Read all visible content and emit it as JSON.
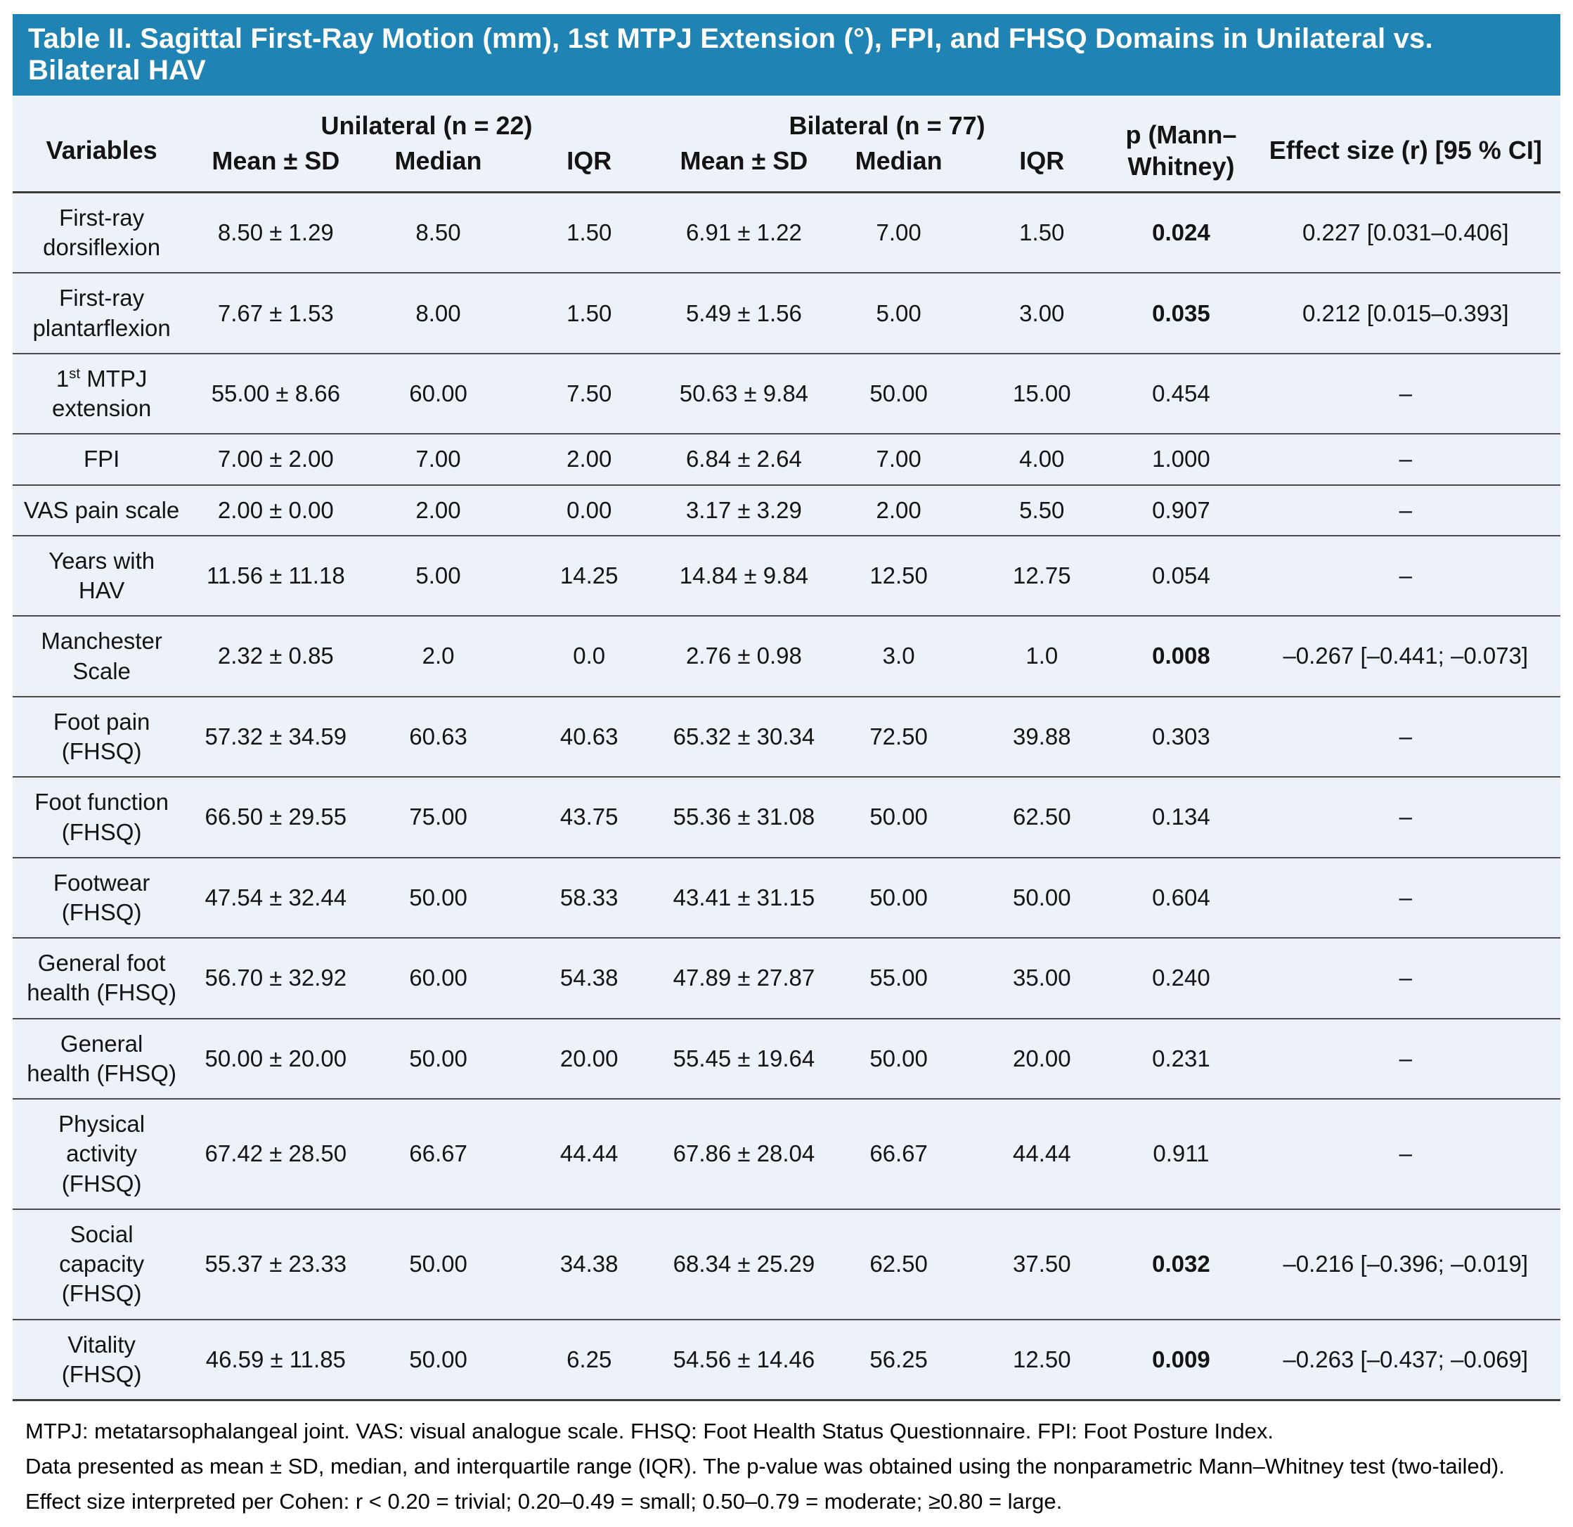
{
  "colors": {
    "title_bar": "#1F84B4",
    "table_body_background": "#EDF1F8",
    "row_rule": "#4A4A4A"
  },
  "table": {
    "title": "Table II. Sagittal First-Ray Motion (mm), 1st MTPJ Extension (°), FPI, and FHSQ Domains in Unilateral vs. Bilateral HAV",
    "header": {
      "variables_label": "Variables",
      "groups": [
        {
          "label": "Unilateral (n = 22)",
          "sub": [
            "Mean ± SD",
            "Median",
            "IQR"
          ]
        },
        {
          "label": "Bilateral (n = 77)",
          "sub": [
            "Mean ± SD",
            "Median",
            "IQR"
          ]
        }
      ],
      "p_label": "p (Mann–\nWhitney)",
      "effect_label": "Effect size (r) [95 % CI]"
    },
    "rows": [
      {
        "variable": "First-ray\ndorsiflexion",
        "uni": [
          "8.50 ± 1.29",
          "8.50",
          "1.50"
        ],
        "bil": [
          "6.91 ± 1.22",
          "7.00",
          "1.50"
        ],
        "p": "0.024",
        "p_bold": true,
        "effect": "0.227 [0.031–0.406]"
      },
      {
        "variable": "First-ray\nplantarflexion",
        "uni": [
          "7.67 ± 1.53",
          "8.00",
          "1.50"
        ],
        "bil": [
          "5.49 ± 1.56",
          "5.00",
          "3.00"
        ],
        "p": "0.035",
        "p_bold": true,
        "effect": "0.212 [0.015–0.393]"
      },
      {
        "variable_segments": [
          {
            "t": "1"
          },
          {
            "t": "st",
            "sup": true
          },
          {
            "t": " MTPJ\nextension"
          }
        ],
        "uni": [
          "55.00 ± 8.66",
          "60.00",
          "7.50"
        ],
        "bil": [
          "50.63 ± 9.84",
          "50.00",
          "15.00"
        ],
        "p": "0.454",
        "p_bold": false,
        "effect": "–"
      },
      {
        "variable": "FPI",
        "uni": [
          "7.00 ± 2.00",
          "7.00",
          "2.00"
        ],
        "bil": [
          "6.84 ± 2.64",
          "7.00",
          "4.00"
        ],
        "p": "1.000",
        "p_bold": false,
        "effect": "–"
      },
      {
        "variable": "VAS pain scale",
        "uni": [
          "2.00 ± 0.00",
          "2.00",
          "0.00"
        ],
        "bil": [
          "3.17 ± 3.29",
          "2.00",
          "5.50"
        ],
        "p": "0.907",
        "p_bold": false,
        "effect": "–"
      },
      {
        "variable": "Years with\nHAV",
        "uni": [
          "11.56 ± 11.18",
          "5.00",
          "14.25"
        ],
        "bil": [
          "14.84 ± 9.84",
          "12.50",
          "12.75"
        ],
        "p": "0.054",
        "p_bold": false,
        "effect": "–"
      },
      {
        "variable": "Manchester\nScale",
        "uni": [
          "2.32 ± 0.85",
          "2.0",
          "0.0"
        ],
        "bil": [
          "2.76 ± 0.98",
          "3.0",
          "1.0"
        ],
        "p": "0.008",
        "p_bold": true,
        "effect": "–0.267 [–0.441; –0.073]"
      },
      {
        "variable": "Foot pain\n(FHSQ)",
        "uni": [
          "57.32 ± 34.59",
          "60.63",
          "40.63"
        ],
        "bil": [
          "65.32 ± 30.34",
          "72.50",
          "39.88"
        ],
        "p": "0.303",
        "p_bold": false,
        "effect": "–"
      },
      {
        "variable": "Foot function\n(FHSQ)",
        "uni": [
          "66.50 ± 29.55",
          "75.00",
          "43.75"
        ],
        "bil": [
          "55.36 ± 31.08",
          "50.00",
          "62.50"
        ],
        "p": "0.134",
        "p_bold": false,
        "effect": "–"
      },
      {
        "variable": "Footwear\n(FHSQ)",
        "uni": [
          "47.54 ± 32.44",
          "50.00",
          "58.33"
        ],
        "bil": [
          "43.41 ± 31.15",
          "50.00",
          "50.00"
        ],
        "p": "0.604",
        "p_bold": false,
        "effect": "–"
      },
      {
        "variable": "General foot\nhealth (FHSQ)",
        "uni": [
          "56.70 ± 32.92",
          "60.00",
          "54.38"
        ],
        "bil": [
          "47.89 ± 27.87",
          "55.00",
          "35.00"
        ],
        "p": "0.240",
        "p_bold": false,
        "effect": "–"
      },
      {
        "variable": "General\nhealth (FHSQ)",
        "uni": [
          "50.00 ± 20.00",
          "50.00",
          "20.00"
        ],
        "bil": [
          "55.45 ± 19.64",
          "50.00",
          "20.00"
        ],
        "p": "0.231",
        "p_bold": false,
        "effect": "–"
      },
      {
        "variable": "Physical\nactivity\n(FHSQ)",
        "uni": [
          "67.42 ± 28.50",
          "66.67",
          "44.44"
        ],
        "bil": [
          "67.86 ± 28.04",
          "66.67",
          "44.44"
        ],
        "p": "0.911",
        "p_bold": false,
        "effect": "–"
      },
      {
        "variable": "Social\ncapacity\n(FHSQ)",
        "uni": [
          "55.37 ± 23.33",
          "50.00",
          "34.38"
        ],
        "bil": [
          "68.34 ± 25.29",
          "62.50",
          "37.50"
        ],
        "p": "0.032",
        "p_bold": true,
        "effect": "–0.216 [–0.396; –0.019]"
      },
      {
        "variable": "Vitality\n(FHSQ)",
        "uni": [
          "46.59 ± 11.85",
          "50.00",
          "6.25"
        ],
        "bil": [
          "54.56 ± 14.46",
          "56.25",
          "12.50"
        ],
        "p": "0.009",
        "p_bold": true,
        "effect": "–0.263 [–0.437; –0.069]"
      }
    ],
    "footnotes": {
      "line1": "MTPJ: metatarsophalangeal joint. VAS: visual analogue scale. FHSQ: Foot Health Status Questionnaire. FPI: Foot Posture Index.",
      "line2": "Data presented as mean ± SD, median, and interquartile range (IQR). The p-value was obtained using the nonparametric Mann–Whitney test (two-tailed). Effect size interpreted per Cohen: r < 0.20 = trivial; 0.20–0.49 = small; 0.50–0.79 = moderate; ≥0.80 = large."
    }
  }
}
